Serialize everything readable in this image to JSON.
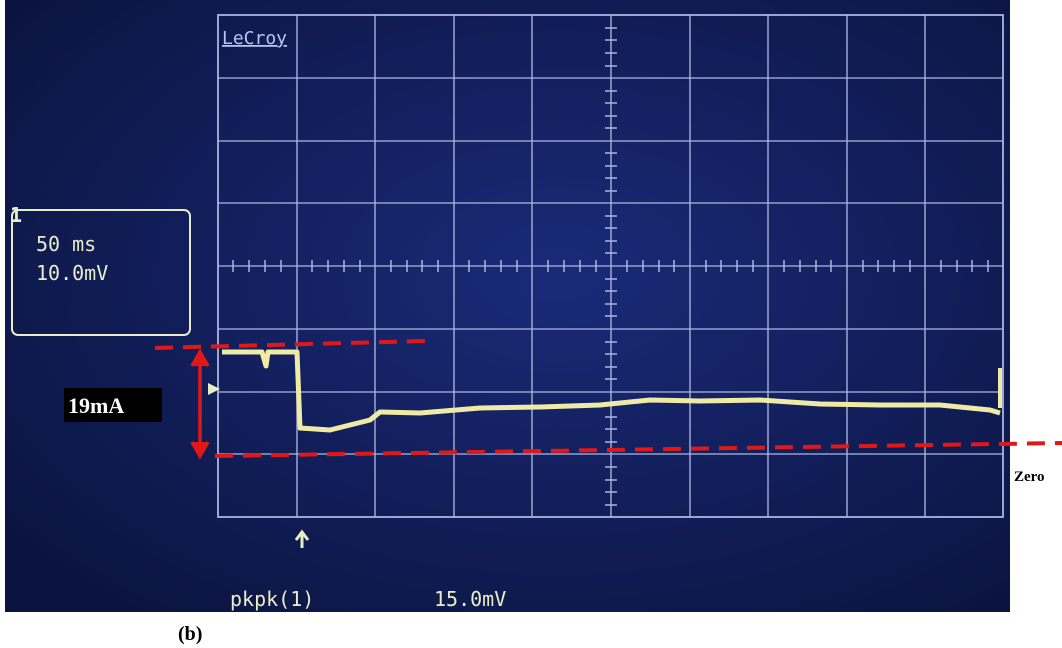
{
  "screen": {
    "brand": "LeCroy",
    "channel": "1",
    "timebase": "50 ms",
    "volts_per_div": "10.0mV",
    "measurement": {
      "label": "pkpk(1)",
      "value": "15.0mV"
    }
  },
  "annotations": {
    "span": "19mA",
    "zero": "Zero"
  },
  "caption": "(b)"
}
